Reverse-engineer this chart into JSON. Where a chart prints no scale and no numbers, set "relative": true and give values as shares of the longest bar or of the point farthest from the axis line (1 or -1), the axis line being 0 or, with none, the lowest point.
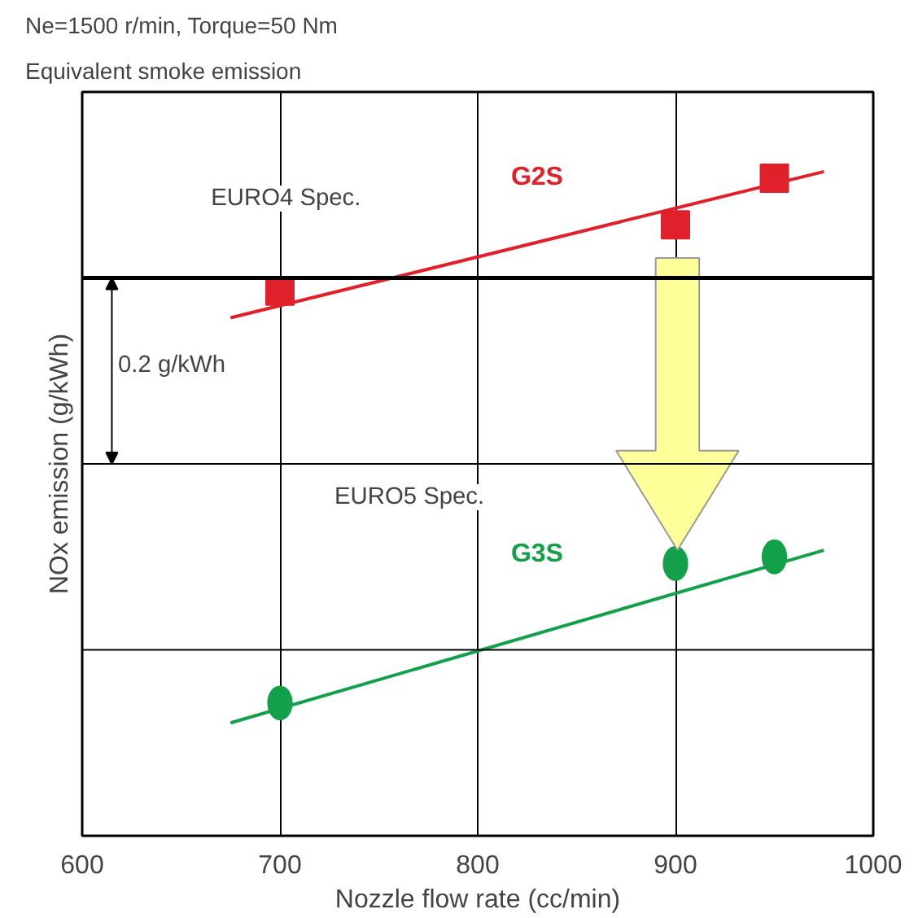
{
  "chart_data": {
    "type": "scatter",
    "title": "Ne=1500 r/min, Torque=50 Nm",
    "subtitle": "Equivalent smoke emission",
    "xlabel": "Nozzle flow rate (cc/min)",
    "ylabel": "NOx emission (g/kWh)",
    "relative": true,
    "xlim": [
      600,
      1000
    ],
    "xticks": [
      600,
      700,
      800,
      900,
      1000
    ],
    "grid": "x",
    "series": [
      {
        "name": "G2S",
        "color": "#e0202a",
        "marker": "square",
        "x": [
          700,
          900,
          950
        ],
        "values": [
          0.82,
          0.92,
          0.99
        ]
      },
      {
        "type": "line",
        "color": "#e0202a",
        "x": [
          675,
          975
        ],
        "values": [
          0.78,
          1.0
        ]
      },
      {
        "name": "G3S",
        "color": "#13a04a",
        "marker": "circle",
        "x": [
          700,
          900,
          950
        ],
        "values": [
          0.2,
          0.41,
          0.42
        ]
      },
      {
        "type": "line",
        "color": "#13a04a",
        "x": [
          675,
          975
        ],
        "values": [
          0.17,
          0.43
        ]
      }
    ],
    "ref_lines": [
      {
        "axis": "y",
        "value": 0.28,
        "color": "#000000"
      },
      {
        "axis": "y",
        "value": 0.56,
        "color": "#000000"
      },
      {
        "axis": "y",
        "value": 0.84,
        "color": "#000000",
        "label": "EURO4 Spec."
      }
    ],
    "annotations": [
      "EURO5 Spec.",
      "0.2 g/kWh"
    ]
  }
}
